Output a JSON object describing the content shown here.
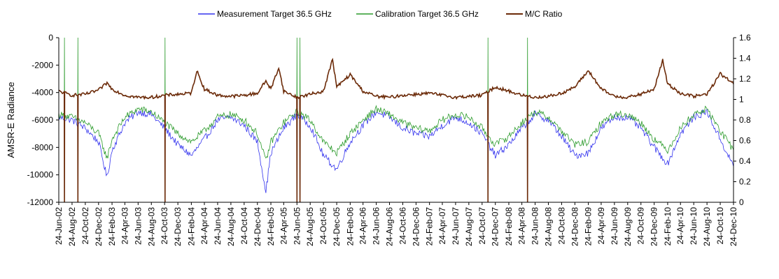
{
  "chart_data": {
    "type": "line",
    "ylabel": "AMSR-E Radiance",
    "ylim": [
      -12000,
      0
    ],
    "y_ticks": [
      "0",
      "-2000",
      "-4000",
      "-6000",
      "-8000",
      "-10000",
      "-12000"
    ],
    "y2lim": [
      0,
      1.6
    ],
    "y2_ticks": [
      "1.6",
      "1.4",
      "1.2",
      "1",
      "0.8",
      "0.6",
      "0.4",
      "0.2",
      "0"
    ],
    "grid": false,
    "legend_position": "top",
    "x_tick_labels": [
      "24-Jun-02",
      "24-Aug-02",
      "24-Oct-02",
      "24-Dec-02",
      "24-Feb-03",
      "24-Apr-03",
      "24-Jun-03",
      "24-Aug-03",
      "24-Oct-03",
      "24-Dec-03",
      "24-Feb-04",
      "24-Apr-04",
      "24-Jun-04",
      "24-Aug-04",
      "24-Oct-04",
      "24-Dec-04",
      "24-Feb-05",
      "24-Apr-05",
      "24-Jun-05",
      "24-Aug-05",
      "24-Oct-05",
      "24-Dec-05",
      "24-Feb-06",
      "24-Apr-06",
      "24-Jun-06",
      "24-Aug-06",
      "24-Oct-06",
      "24-Dec-06",
      "24-Feb-07",
      "24-Apr-07",
      "24-Jun-07",
      "24-Aug-07",
      "24-Oct-07",
      "24-Dec-07",
      "24-Feb-08",
      "24-Apr-08",
      "24-Jun-08",
      "24-Aug-08",
      "24-Oct-08",
      "24-Dec-08",
      "24-Feb-09",
      "24-Apr-09",
      "24-Jun-09",
      "24-Aug-09",
      "24-Oct-09",
      "24-Dec-09",
      "24-Feb-10",
      "24-Apr-10",
      "24-Jun-10",
      "24-Aug-10",
      "24-Oct-10",
      "24-Dec-10"
    ],
    "x_range": [
      "2002-06-24",
      "2010-12-24"
    ],
    "series": [
      {
        "name": "Measurement Target 36.5 GHz",
        "axis": "left",
        "color": "#3333ee",
        "x": [
          "2002-06-24",
          "2002-08-24",
          "2002-10-24",
          "2002-12-24",
          "2003-02-01",
          "2003-02-24",
          "2003-04-24",
          "2003-06-24",
          "2003-08-24",
          "2003-10-24",
          "2003-12-24",
          "2004-02-24",
          "2004-04-24",
          "2004-06-24",
          "2004-08-24",
          "2004-10-24",
          "2004-12-24",
          "2005-02-01",
          "2005-02-24",
          "2005-04-24",
          "2005-06-24",
          "2005-08-24",
          "2005-10-24",
          "2005-12-24",
          "2006-02-24",
          "2006-04-24",
          "2006-06-24",
          "2006-08-24",
          "2006-10-24",
          "2006-12-24",
          "2007-02-24",
          "2007-04-24",
          "2007-06-24",
          "2007-08-24",
          "2007-10-24",
          "2007-12-24",
          "2008-02-24",
          "2008-04-24",
          "2008-06-24",
          "2008-08-24",
          "2008-10-24",
          "2008-12-24",
          "2009-02-24",
          "2009-04-24",
          "2009-06-24",
          "2009-08-24",
          "2009-10-24",
          "2009-12-24",
          "2010-02-24",
          "2010-04-24",
          "2010-06-24",
          "2010-08-24",
          "2010-10-24",
          "2010-12-24"
        ],
        "y": [
          -5800,
          -6000,
          -6600,
          -7600,
          -10200,
          -8200,
          -6200,
          -5400,
          -5600,
          -6600,
          -7800,
          -8600,
          -7400,
          -6000,
          -5800,
          -6400,
          -7600,
          -11200,
          -8400,
          -6600,
          -5600,
          -6400,
          -8600,
          -9600,
          -7600,
          -6400,
          -5400,
          -5800,
          -6600,
          -7000,
          -7200,
          -6400,
          -5800,
          -6200,
          -7000,
          -8600,
          -7800,
          -6600,
          -5600,
          -6000,
          -7200,
          -8600,
          -8400,
          -6600,
          -5800,
          -5800,
          -6600,
          -8000,
          -9200,
          -7000,
          -5800,
          -5400,
          -7400,
          -9400
        ]
      },
      {
        "name": "Calibration Target 36.5 GHz",
        "axis": "left",
        "color": "#2a9a2a",
        "x": [
          "2002-06-24",
          "2002-08-24",
          "2002-10-24",
          "2002-12-24",
          "2003-02-01",
          "2003-02-24",
          "2003-04-24",
          "2003-06-24",
          "2003-08-24",
          "2003-10-24",
          "2003-12-24",
          "2004-02-24",
          "2004-04-24",
          "2004-06-24",
          "2004-08-24",
          "2004-10-24",
          "2004-12-24",
          "2005-02-01",
          "2005-02-24",
          "2005-04-24",
          "2005-06-24",
          "2005-08-24",
          "2005-10-24",
          "2005-12-24",
          "2006-02-24",
          "2006-04-24",
          "2006-06-24",
          "2006-08-24",
          "2006-10-24",
          "2006-12-24",
          "2007-02-24",
          "2007-04-24",
          "2007-06-24",
          "2007-08-24",
          "2007-10-24",
          "2007-12-24",
          "2008-02-24",
          "2008-04-24",
          "2008-06-24",
          "2008-08-24",
          "2008-10-24",
          "2008-12-24",
          "2009-02-24",
          "2009-04-24",
          "2009-06-24",
          "2009-08-24",
          "2009-10-24",
          "2009-12-24",
          "2010-02-24",
          "2010-04-24",
          "2010-06-24",
          "2010-08-24",
          "2010-10-24",
          "2010-12-24"
        ],
        "y": [
          -5600,
          -5800,
          -6200,
          -7000,
          -8800,
          -7400,
          -5800,
          -5200,
          -5400,
          -6200,
          -7000,
          -7600,
          -6800,
          -5800,
          -5600,
          -6000,
          -7000,
          -9000,
          -7600,
          -6200,
          -5400,
          -6000,
          -7600,
          -8400,
          -7000,
          -6000,
          -5200,
          -5600,
          -6200,
          -6600,
          -6800,
          -6000,
          -5600,
          -5800,
          -6600,
          -7800,
          -7200,
          -6200,
          -5400,
          -5800,
          -6800,
          -7800,
          -7600,
          -6200,
          -5600,
          -5600,
          -6200,
          -7400,
          -8200,
          -6600,
          -5600,
          -5200,
          -6800,
          -8200
        ]
      },
      {
        "name": "M/C Ratio",
        "axis": "right",
        "color": "#6b2a08",
        "x": [
          "2002-06-24",
          "2002-08-24",
          "2002-10-24",
          "2002-12-24",
          "2003-02-01",
          "2003-02-24",
          "2003-04-24",
          "2003-06-24",
          "2003-08-24",
          "2003-10-24",
          "2003-12-24",
          "2004-02-24",
          "2004-03-20",
          "2004-04-24",
          "2004-06-24",
          "2004-08-24",
          "2004-10-24",
          "2004-12-24",
          "2005-02-01",
          "2005-02-24",
          "2005-04-01",
          "2005-04-24",
          "2005-06-24",
          "2005-08-24",
          "2005-10-24",
          "2005-12-05",
          "2005-12-24",
          "2006-02-24",
          "2006-04-24",
          "2006-06-24",
          "2006-08-24",
          "2006-10-24",
          "2006-12-24",
          "2007-02-24",
          "2007-04-24",
          "2007-06-24",
          "2007-08-24",
          "2007-10-24",
          "2007-12-24",
          "2008-02-24",
          "2008-04-24",
          "2008-06-24",
          "2008-08-24",
          "2008-10-24",
          "2008-12-24",
          "2009-02-24",
          "2009-04-24",
          "2009-06-24",
          "2009-08-24",
          "2009-10-24",
          "2009-12-24",
          "2010-02-01",
          "2010-02-24",
          "2010-04-24",
          "2010-06-24",
          "2010-08-24",
          "2010-10-24",
          "2010-12-24"
        ],
        "y": [
          1.08,
          1.04,
          1.05,
          1.09,
          1.16,
          1.1,
          1.04,
          1.02,
          1.02,
          1.04,
          1.05,
          1.06,
          1.28,
          1.1,
          1.04,
          1.03,
          1.04,
          1.06,
          1.18,
          1.1,
          1.31,
          1.08,
          1.02,
          1.05,
          1.08,
          1.39,
          1.12,
          1.24,
          1.08,
          1.03,
          1.02,
          1.04,
          1.05,
          1.06,
          1.04,
          1.02,
          1.03,
          1.04,
          1.12,
          1.08,
          1.04,
          1.02,
          1.03,
          1.06,
          1.12,
          1.28,
          1.1,
          1.03,
          1.02,
          1.05,
          1.1,
          1.38,
          1.15,
          1.06,
          1.03,
          1.05,
          1.25,
          1.15
        ]
      }
    ],
    "spikes": [
      {
        "series": "Measurement Target 36.5 GHz",
        "dates": [
          "2002-07-20",
          "2002-09-20",
          "2003-10-26",
          "2005-06-24",
          "2005-07-08",
          "2007-11-20",
          "2008-05-20"
        ]
      },
      {
        "series": "Calibration Target 36.5 GHz",
        "dates": [
          "2002-07-20",
          "2002-09-20",
          "2003-10-26",
          "2005-06-24",
          "2005-07-08",
          "2007-11-20",
          "2008-05-20"
        ]
      },
      {
        "series": "M/C Ratio",
        "dates": [
          "2002-07-20",
          "2002-09-20",
          "2003-10-26",
          "2005-06-24",
          "2005-07-08",
          "2007-11-20",
          "2008-05-20"
        ]
      }
    ]
  }
}
